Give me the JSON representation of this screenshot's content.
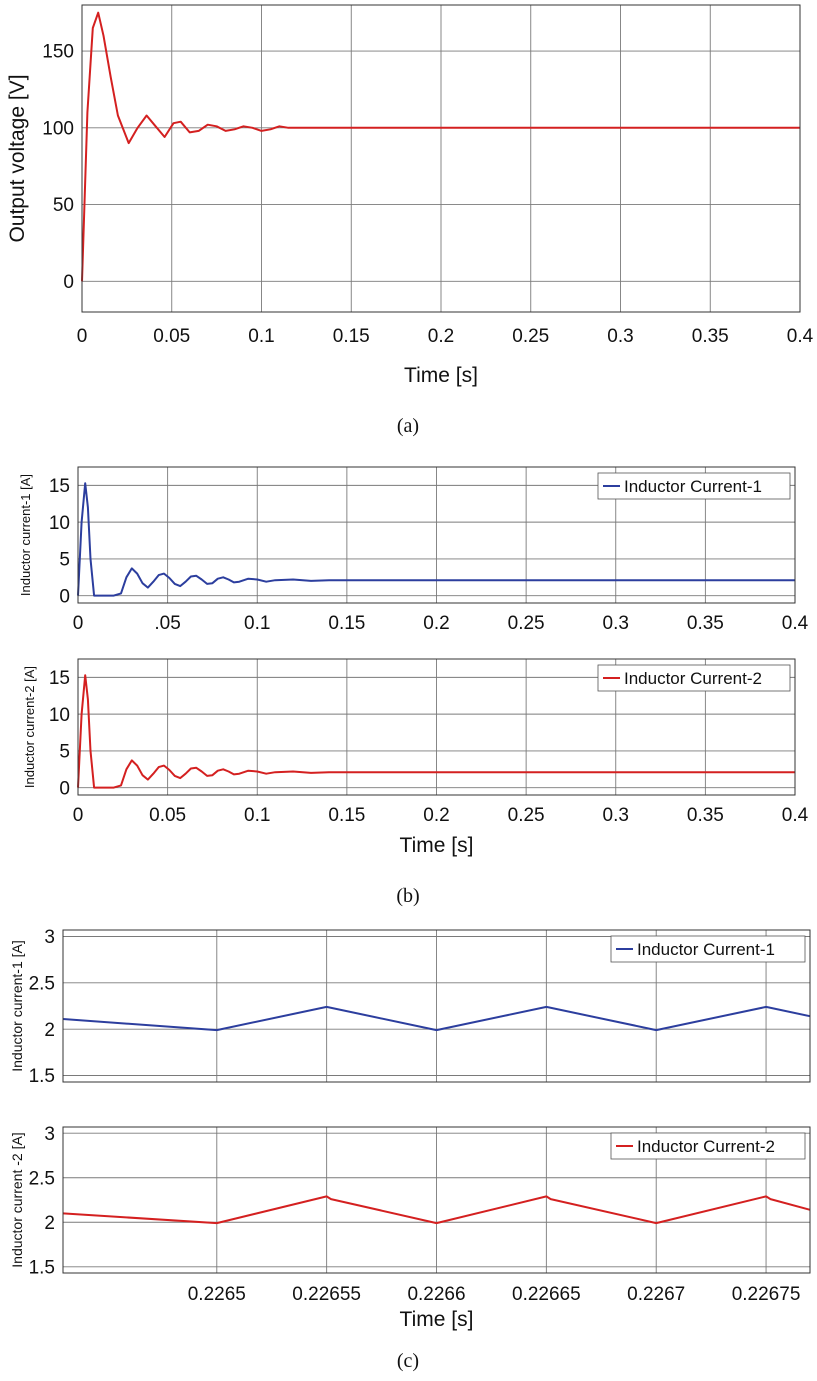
{
  "chart_data": [
    {
      "type": "line",
      "panel": "(a)",
      "xlabel": "Time [s]",
      "ylabel": "Output voltage [V]",
      "xlim": [
        0,
        0.4
      ],
      "ylim": [
        -20,
        180
      ],
      "xticks": [
        0,
        0.05,
        0.1,
        0.15,
        0.2,
        0.25,
        0.3,
        0.35,
        0.4
      ],
      "xtick_labels": [
        "0",
        "0.05",
        "0.1",
        "0.15",
        "0.2",
        "0.25",
        "0.3",
        "0.35",
        "0.4"
      ],
      "yticks": [
        0,
        50,
        100,
        150
      ],
      "ytick_labels": [
        "0",
        "50",
        "100",
        "150"
      ],
      "grid": true,
      "legend": "",
      "series": [
        {
          "name": "Output voltage",
          "color": "#d42020",
          "x": [
            0,
            0.003,
            0.006,
            0.009,
            0.012,
            0.016,
            0.02,
            0.026,
            0.031,
            0.036,
            0.041,
            0.046,
            0.051,
            0.055,
            0.06,
            0.065,
            0.07,
            0.075,
            0.08,
            0.085,
            0.09,
            0.095,
            0.1,
            0.105,
            0.11,
            0.115,
            0.12,
            0.13,
            0.14,
            0.15,
            0.16,
            0.18,
            0.2,
            0.3,
            0.4
          ],
          "y": [
            0,
            110,
            165,
            175,
            160,
            133,
            108,
            90,
            100,
            108,
            101,
            94,
            103,
            104,
            97,
            98,
            102,
            101,
            98,
            99,
            101,
            100,
            98,
            99,
            101,
            100,
            100,
            100,
            100,
            100,
            100,
            100,
            100,
            100,
            100
          ]
        }
      ]
    },
    {
      "type": "line",
      "panel": "(b) top",
      "xlabel": "",
      "ylabel": "Inductor current-1 [A]",
      "xlim": [
        0,
        0.4
      ],
      "ylim": [
        -1,
        17.5
      ],
      "xticks": [
        0,
        0.05,
        0.1,
        0.15,
        0.2,
        0.25,
        0.3,
        0.35,
        0.4
      ],
      "xtick_labels": [
        "0",
        ".05",
        "0.1",
        "0.15",
        "0.2",
        "0.25",
        "0.3",
        "0.35",
        "0.4"
      ],
      "yticks": [
        0,
        5,
        10,
        15
      ],
      "ytick_labels": [
        "0",
        "5",
        "10",
        "15"
      ],
      "grid": true,
      "legend": "top-right",
      "series": [
        {
          "name": "Inductor Current-1",
          "color": "#2c3e9e",
          "x": [
            0,
            0.002,
            0.004,
            0.0055,
            0.007,
            0.009,
            0.02,
            0.024,
            0.027,
            0.03,
            0.033,
            0.036,
            0.039,
            0.042,
            0.045,
            0.048,
            0.051,
            0.054,
            0.057,
            0.06,
            0.063,
            0.066,
            0.069,
            0.072,
            0.075,
            0.078,
            0.081,
            0.084,
            0.087,
            0.09,
            0.095,
            0.1,
            0.105,
            0.11,
            0.12,
            0.13,
            0.14,
            0.16,
            0.2,
            0.3,
            0.4
          ],
          "y": [
            0,
            10,
            15.3,
            12,
            5,
            0,
            0,
            0.3,
            2.5,
            3.7,
            3,
            1.7,
            1.1,
            1.9,
            2.8,
            3,
            2.4,
            1.6,
            1.3,
            1.9,
            2.6,
            2.7,
            2.2,
            1.6,
            1.7,
            2.3,
            2.5,
            2.2,
            1.8,
            1.9,
            2.3,
            2.2,
            1.9,
            2.1,
            2.2,
            2,
            2.1,
            2.1,
            2.1,
            2.1,
            2.1
          ]
        }
      ]
    },
    {
      "type": "line",
      "panel": "(b) bottom",
      "xlabel": "Time [s]",
      "ylabel": "Inductor current-2 [A]",
      "xlim": [
        0,
        0.4
      ],
      "ylim": [
        -1,
        17.5
      ],
      "xticks": [
        0,
        0.05,
        0.1,
        0.15,
        0.2,
        0.25,
        0.3,
        0.35,
        0.4
      ],
      "xtick_labels": [
        "0",
        "0.05",
        "0.1",
        "0.15",
        "0.2",
        "0.25",
        "0.3",
        "0.35",
        "0.4"
      ],
      "yticks": [
        0,
        5,
        10,
        15
      ],
      "ytick_labels": [
        "0",
        "5",
        "10",
        "15"
      ],
      "grid": true,
      "legend": "top-right",
      "series": [
        {
          "name": "Inductor Current-2",
          "color": "#d42020",
          "x": [
            0,
            0.002,
            0.004,
            0.0055,
            0.007,
            0.009,
            0.02,
            0.024,
            0.027,
            0.03,
            0.033,
            0.036,
            0.039,
            0.042,
            0.045,
            0.048,
            0.051,
            0.054,
            0.057,
            0.06,
            0.063,
            0.066,
            0.069,
            0.072,
            0.075,
            0.078,
            0.081,
            0.084,
            0.087,
            0.09,
            0.095,
            0.1,
            0.105,
            0.11,
            0.12,
            0.13,
            0.14,
            0.16,
            0.2,
            0.3,
            0.4
          ],
          "y": [
            0,
            10,
            15.3,
            12,
            5,
            0,
            0,
            0.3,
            2.5,
            3.7,
            3,
            1.7,
            1.1,
            1.9,
            2.8,
            3,
            2.4,
            1.6,
            1.3,
            1.9,
            2.6,
            2.7,
            2.2,
            1.6,
            1.7,
            2.3,
            2.5,
            2.2,
            1.8,
            1.9,
            2.3,
            2.2,
            1.9,
            2.1,
            2.2,
            2,
            2.1,
            2.1,
            2.1,
            2.1,
            2.1
          ]
        }
      ]
    },
    {
      "type": "line",
      "panel": "(c) top",
      "xlabel": "",
      "ylabel": "Inductor current-1 [A]",
      "xlim": [
        0.22643,
        0.22677
      ],
      "ylim": [
        1.43,
        3.07
      ],
      "xticks": [
        0.2265,
        0.22655,
        0.2266,
        0.22665,
        0.2267,
        0.22675
      ],
      "xtick_labels": [],
      "yticks": [
        1.5,
        2,
        2.5,
        3
      ],
      "ytick_labels": [
        "1.5",
        "2",
        "2.5",
        "3"
      ],
      "grid": true,
      "legend": "top-right",
      "series": [
        {
          "name": "Inductor Current-1",
          "color": "#2c3e9e",
          "x": [
            0.22643,
            0.2265,
            0.22655,
            0.2266,
            0.22665,
            0.2267,
            0.22675,
            0.22677
          ],
          "y": [
            2.11,
            1.99,
            2.24,
            1.99,
            2.24,
            1.99,
            2.24,
            2.14
          ]
        }
      ]
    },
    {
      "type": "line",
      "panel": "(c) bottom",
      "xlabel": "Time [s]",
      "ylabel": "Inductor current -2 [A]",
      "xlim": [
        0.22643,
        0.22677
      ],
      "ylim": [
        1.43,
        3.07
      ],
      "xticks": [
        0.2265,
        0.22655,
        0.2266,
        0.22665,
        0.2267,
        0.22675
      ],
      "xtick_labels": [
        "0.2265",
        "0.22655",
        "0.2266",
        "0.22665",
        "0.2267",
        "0.22675"
      ],
      "yticks": [
        1.5,
        2,
        2.5,
        3
      ],
      "ytick_labels": [
        "1.5",
        "2",
        "2.5",
        "3"
      ],
      "grid": true,
      "legend": "top-right",
      "series": [
        {
          "name": "Inductor Current-2",
          "color": "#d42020",
          "x": [
            0.22643,
            0.2265,
            0.22655,
            0.226552,
            0.2266,
            0.22665,
            0.226652,
            0.2267,
            0.22675,
            0.226752,
            0.22677
          ],
          "y": [
            2.1,
            1.99,
            2.29,
            2.26,
            1.99,
            2.29,
            2.26,
            1.99,
            2.29,
            2.26,
            2.14
          ]
        }
      ]
    }
  ],
  "captions": [
    "(a)",
    "(b)",
    "(c)"
  ]
}
